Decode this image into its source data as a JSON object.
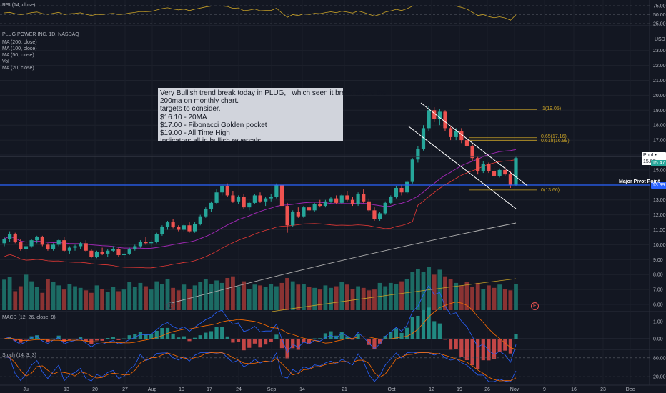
{
  "header": {
    "rsi_title": "RSI (14, close)",
    "main_title": "PLUG POWER INC, 1D, NASDAQ",
    "indicators": [
      "MA (200, close)",
      "MA (100, close)",
      "MA (50, close)",
      "Vol",
      "MA (20, close)"
    ],
    "macd_title": "MACD (12, 26, close, 9)",
    "stoch_title": "Stoch (14, 3, 3)",
    "currency": "USD"
  },
  "annotation": {
    "lines": [
      "Very Bullish trend break today in PLUG,   which seen it break above the",
      "200ma on monthly chart.",
      "targets to consider.",
      "$16.10 - 20MA",
      "$17.00 - Fibonacci Golden pocket",
      "$19.00 - All Time High",
      "Indicators all in bullish reversals."
    ]
  },
  "labels": {
    "pivot": "Major Pivot Point",
    "fib_top": "1(19.05)",
    "fib_618_a": "0.65(17.16)",
    "fib_618_b": "0.618(16.99)",
    "fib_zero": "0(13.66)",
    "event_a": "D",
    "event_b": "E"
  },
  "price_tags": {
    "ppp": "PppI • 15.87",
    "last": "15.47",
    "pivot_value": "13.99"
  },
  "colors": {
    "up": "#26a69a",
    "down": "#ef5350",
    "pivot_line": "#2962ff",
    "fib": "#c9a227",
    "ma20": "#9c27b0",
    "ma50": "#e53935",
    "ma100": "#b0b0b0",
    "ma200": "#c9a227",
    "channel": "#ffffff",
    "macd_line": "#2962ff",
    "signal_line": "#ff6d00",
    "stoch_k": "#2962ff",
    "stoch_d": "#ff6d00"
  },
  "chart_data": {
    "type": "candlestick",
    "x_axis_labels": [
      "Jul",
      "13",
      "20",
      "27",
      "Aug",
      "10",
      "17",
      "24",
      "Sep",
      "14",
      "21",
      "Oct",
      "12",
      "19",
      "26",
      "Nov",
      "9",
      "16",
      "23",
      "Dec"
    ],
    "price_axis": [
      6.0,
      7.0,
      8.0,
      9.0,
      10.0,
      11.0,
      12.0,
      13.0,
      14.0,
      15.0,
      16.0,
      17.0,
      18.0,
      19.0,
      20.0,
      21.0,
      22.0,
      23.0
    ],
    "rsi_axis": [
      75.0,
      50.0,
      25.0
    ],
    "macd_axis": [
      1.0,
      0.0
    ],
    "stoch_axis": [
      80.0,
      20.0
    ],
    "ylim": [
      5.8,
      23.5
    ],
    "candles": [
      [
        10.1,
        10.5,
        9.9,
        10.4
      ],
      [
        10.4,
        10.9,
        10.2,
        10.7
      ],
      [
        10.7,
        10.8,
        10.1,
        10.2
      ],
      [
        10.2,
        10.4,
        9.6,
        9.7
      ],
      [
        9.7,
        10.0,
        9.5,
        9.9
      ],
      [
        9.9,
        10.4,
        9.8,
        10.3
      ],
      [
        10.3,
        10.6,
        10.1,
        10.5
      ],
      [
        10.5,
        10.6,
        9.9,
        10.0
      ],
      [
        10.0,
        10.1,
        9.6,
        9.7
      ],
      [
        9.7,
        10.1,
        9.6,
        10.0
      ],
      [
        10.0,
        10.4,
        9.9,
        10.3
      ],
      [
        10.3,
        10.5,
        9.5,
        9.6
      ],
      [
        9.6,
        9.9,
        9.4,
        9.8
      ],
      [
        9.8,
        10.0,
        9.6,
        9.9
      ],
      [
        9.9,
        10.2,
        9.7,
        10.1
      ],
      [
        10.1,
        10.3,
        9.5,
        9.6
      ],
      [
        9.6,
        9.7,
        9.1,
        9.2
      ],
      [
        9.2,
        9.6,
        9.1,
        9.5
      ],
      [
        9.5,
        9.8,
        9.3,
        9.4
      ],
      [
        9.4,
        9.7,
        9.2,
        9.6
      ],
      [
        9.6,
        9.9,
        9.5,
        9.7
      ],
      [
        9.7,
        9.8,
        9.2,
        9.3
      ],
      [
        9.3,
        9.5,
        9.1,
        9.4
      ],
      [
        9.4,
        9.8,
        9.3,
        9.7
      ],
      [
        9.7,
        10.0,
        9.6,
        9.9
      ],
      [
        9.9,
        10.3,
        9.8,
        10.2
      ],
      [
        10.2,
        10.5,
        10.0,
        10.1
      ],
      [
        10.1,
        10.3,
        9.9,
        10.2
      ],
      [
        10.2,
        10.8,
        10.1,
        10.7
      ],
      [
        10.7,
        11.3,
        10.6,
        11.2
      ],
      [
        11.2,
        11.6,
        11.0,
        11.5
      ],
      [
        11.5,
        11.7,
        11.1,
        11.2
      ],
      [
        11.2,
        11.3,
        10.9,
        11.0
      ],
      [
        11.0,
        11.4,
        10.9,
        11.3
      ],
      [
        11.3,
        11.5,
        10.8,
        10.9
      ],
      [
        10.9,
        11.5,
        10.8,
        11.4
      ],
      [
        11.4,
        12.0,
        11.3,
        11.9
      ],
      [
        11.9,
        12.5,
        11.8,
        12.4
      ],
      [
        12.4,
        12.9,
        12.2,
        12.8
      ],
      [
        12.8,
        13.7,
        12.7,
        13.5
      ],
      [
        13.5,
        14.0,
        13.3,
        13.9
      ],
      [
        13.9,
        14.1,
        13.2,
        13.3
      ],
      [
        13.3,
        13.6,
        12.8,
        12.9
      ],
      [
        12.9,
        13.3,
        12.7,
        13.2
      ],
      [
        13.2,
        13.4,
        12.4,
        12.5
      ],
      [
        12.5,
        12.9,
        12.3,
        12.8
      ],
      [
        12.8,
        13.4,
        12.7,
        13.3
      ],
      [
        13.3,
        13.5,
        12.8,
        12.9
      ],
      [
        12.9,
        13.2,
        12.6,
        13.1
      ],
      [
        13.1,
        13.4,
        12.9,
        13.2
      ],
      [
        13.2,
        14.1,
        13.1,
        14.0
      ],
      [
        14.0,
        14.1,
        12.5,
        12.6
      ],
      [
        12.6,
        12.8,
        10.8,
        11.3
      ],
      [
        11.3,
        12.3,
        11.2,
        12.2
      ],
      [
        12.2,
        12.5,
        11.8,
        11.9
      ],
      [
        11.9,
        12.6,
        11.8,
        12.5
      ],
      [
        12.5,
        12.8,
        12.2,
        12.3
      ],
      [
        12.3,
        12.8,
        12.2,
        12.7
      ],
      [
        12.7,
        13.0,
        12.5,
        12.6
      ],
      [
        12.6,
        13.0,
        12.5,
        12.9
      ],
      [
        12.9,
        13.2,
        12.8,
        13.1
      ],
      [
        13.1,
        13.3,
        12.7,
        12.8
      ],
      [
        12.8,
        13.4,
        12.7,
        13.3
      ],
      [
        13.3,
        13.6,
        12.9,
        13.0
      ],
      [
        13.0,
        13.2,
        12.6,
        12.7
      ],
      [
        12.7,
        13.5,
        12.6,
        13.4
      ],
      [
        13.4,
        13.7,
        12.8,
        12.9
      ],
      [
        12.9,
        13.1,
        12.2,
        12.3
      ],
      [
        12.3,
        12.5,
        11.6,
        11.7
      ],
      [
        11.7,
        12.2,
        11.6,
        12.1
      ],
      [
        12.1,
        12.9,
        12.0,
        12.8
      ],
      [
        12.8,
        13.3,
        12.7,
        13.2
      ],
      [
        13.2,
        13.9,
        13.1,
        13.8
      ],
      [
        13.8,
        14.0,
        13.3,
        13.5
      ],
      [
        13.5,
        14.3,
        13.4,
        14.2
      ],
      [
        14.2,
        15.8,
        14.1,
        15.7
      ],
      [
        15.7,
        16.6,
        15.5,
        16.4
      ],
      [
        16.4,
        18.0,
        16.3,
        17.8
      ],
      [
        17.8,
        19.3,
        17.6,
        19.0
      ],
      [
        19.0,
        19.2,
        18.2,
        18.4
      ],
      [
        18.4,
        19.1,
        18.0,
        18.9
      ],
      [
        18.9,
        19.0,
        17.6,
        17.8
      ],
      [
        17.8,
        17.9,
        17.0,
        17.2
      ],
      [
        17.2,
        17.8,
        17.0,
        17.6
      ],
      [
        17.6,
        17.8,
        16.8,
        17.0
      ],
      [
        17.0,
        17.3,
        16.5,
        16.6
      ],
      [
        16.6,
        16.7,
        15.6,
        15.8
      ],
      [
        15.8,
        15.9,
        14.7,
        14.9
      ],
      [
        14.9,
        15.6,
        14.8,
        15.4
      ],
      [
        15.4,
        15.5,
        14.8,
        14.9
      ],
      [
        14.9,
        15.2,
        14.4,
        14.6
      ],
      [
        14.6,
        15.1,
        14.5,
        15.0
      ],
      [
        15.0,
        15.2,
        14.6,
        14.7
      ],
      [
        14.7,
        14.9,
        13.8,
        14.0
      ],
      [
        14.0,
        15.9,
        13.9,
        15.8
      ]
    ],
    "volume": [
      3.7,
      4.0,
      2.3,
      2.9,
      4.3,
      3.5,
      2.8,
      2.1,
      3.8,
      3.4,
      3.0,
      2.5,
      3.2,
      2.9,
      2.7,
      2.4,
      2.1,
      3.0,
      2.6,
      2.2,
      2.8,
      2.3,
      2.5,
      3.4,
      2.8,
      3.3,
      2.9,
      2.5,
      3.5,
      3.2,
      3.8,
      2.7,
      2.4,
      3.1,
      2.6,
      3.0,
      3.4,
      3.8,
      3.2,
      3.6,
      3.3,
      3.9,
      4.1,
      2.9,
      3.5,
      2.6,
      3.1,
      3.0,
      2.8,
      3.2,
      2.9,
      3.3,
      3.9,
      3.5,
      3.1,
      3.2,
      2.8,
      2.7,
      2.5,
      3.0,
      2.7,
      2.9,
      3.4,
      3.1,
      2.6,
      2.9,
      2.7,
      2.4,
      2.5,
      3.3,
      2.9,
      3.3,
      3.2,
      3.5,
      3.8,
      4.6,
      5.0,
      4.6,
      5.2,
      4.3,
      4.9,
      4.1,
      3.8,
      3.3,
      3.0,
      3.4,
      2.8,
      3.3,
      2.6,
      3.0,
      2.7,
      3.1,
      2.6,
      2.4,
      3.2
    ],
    "fib_levels": [
      19.05,
      17.16,
      16.99,
      13.66
    ],
    "pivot": 13.99
  }
}
